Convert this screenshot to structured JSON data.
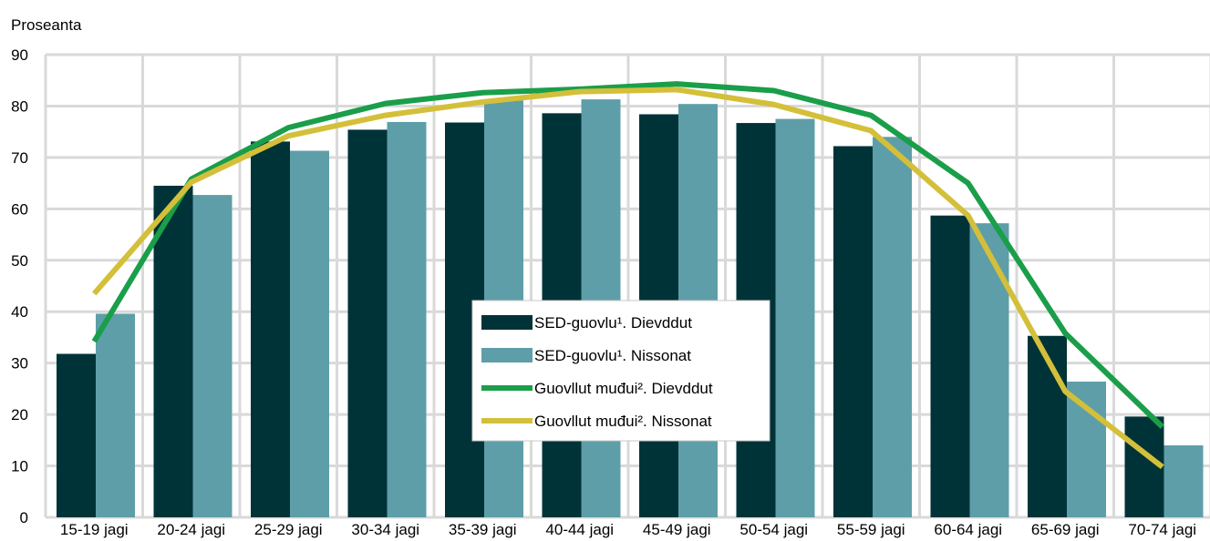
{
  "chart_data": {
    "type": "bar",
    "ylabel": "Proseanta",
    "ylim": [
      0,
      90
    ],
    "yticks": [
      0,
      10,
      20,
      30,
      40,
      50,
      60,
      70,
      80,
      90
    ],
    "grid": true,
    "legend_position": "center",
    "categories": [
      "15-19 jagi",
      "20-24 jagi",
      "25-29 jagi",
      "30-34 jagi",
      "35-39 jagi",
      "40-44 jagi",
      "45-49 jagi",
      "50-54 jagi",
      "55-59 jagi",
      "60-64 jagi",
      "65-69 jagi",
      "70-74 jagi"
    ],
    "series": [
      {
        "name": "SED-guovlu¹. Dievddut",
        "kind": "bar",
        "color": "#003338",
        "values": [
          31.8,
          64.5,
          73.1,
          75.4,
          76.8,
          78.6,
          78.4,
          76.7,
          72.2,
          58.7,
          35.3,
          19.6
        ]
      },
      {
        "name": "SED-guovlu¹. Nissonat",
        "kind": "bar",
        "color": "#5e9ea8",
        "values": [
          39.6,
          62.7,
          71.3,
          76.9,
          81.1,
          81.3,
          80.4,
          77.5,
          74.0,
          57.2,
          26.4,
          14.0
        ]
      },
      {
        "name": "Guovllut muđui². Dievddut",
        "kind": "line",
        "color": "#1a9e4a",
        "values": [
          34.2,
          65.8,
          75.8,
          80.5,
          82.6,
          83.3,
          84.3,
          83.0,
          78.2,
          65.0,
          35.8,
          17.6
        ]
      },
      {
        "name": "Guovllut muđui². Nissonat",
        "kind": "line",
        "color": "#d4bf3a",
        "values": [
          43.5,
          65.2,
          74.2,
          78.2,
          80.8,
          82.8,
          83.2,
          80.3,
          75.2,
          58.7,
          24.5,
          9.8
        ]
      }
    ]
  }
}
